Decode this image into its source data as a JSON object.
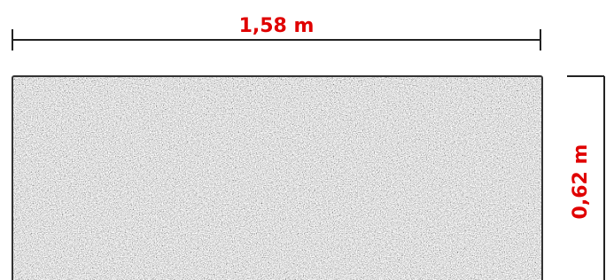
{
  "dimensions": {
    "width": "1,58 m",
    "height": "0,62 m"
  }
}
